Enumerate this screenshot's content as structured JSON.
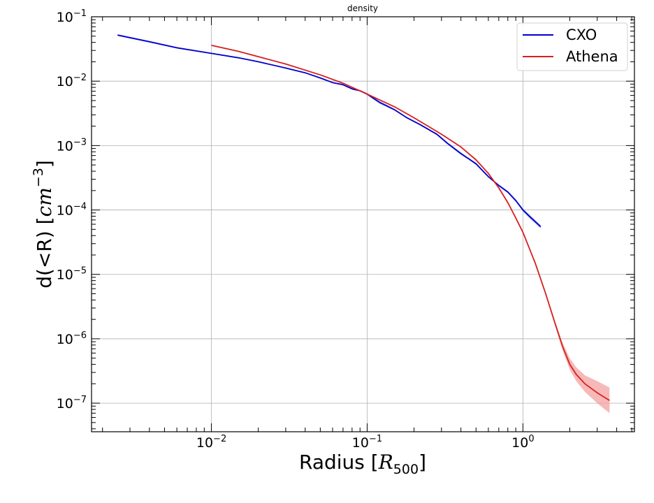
{
  "chart_data": {
    "type": "line",
    "title": "density",
    "xlabel": {
      "main": "Radius [",
      "italic": "R",
      "sub": "500",
      "close": "]"
    },
    "ylabel": {
      "main": "d(<R) [",
      "italic": "cm",
      "sup": "−3",
      "close": "]"
    },
    "x_scale": "log",
    "y_scale": "log",
    "xlim": [
      0.0017,
      5.2
    ],
    "ylim": [
      3.6e-08,
      0.1
    ],
    "grid": true,
    "legend_position": "top-right",
    "x_ticks": [
      {
        "value": 0.01,
        "base": "10",
        "exp": "−2"
      },
      {
        "value": 0.1,
        "base": "10",
        "exp": "−1"
      },
      {
        "value": 1,
        "base": "10",
        "exp": "0"
      }
    ],
    "y_ticks": [
      {
        "value": 1e-07,
        "base": "10",
        "exp": "−7"
      },
      {
        "value": 1e-06,
        "base": "10",
        "exp": "−6"
      },
      {
        "value": 1e-05,
        "base": "10",
        "exp": "−5"
      },
      {
        "value": 0.0001,
        "base": "10",
        "exp": "−4"
      },
      {
        "value": 0.001,
        "base": "10",
        "exp": "−3"
      },
      {
        "value": 0.01,
        "base": "10",
        "exp": "−2"
      },
      {
        "value": 0.1,
        "base": "10",
        "exp": "−1"
      }
    ],
    "series": [
      {
        "name": "CXO",
        "color": "#0000cc",
        "band_color": "#8888ee",
        "x": [
          0.0025,
          0.004,
          0.006,
          0.01,
          0.015,
          0.02,
          0.03,
          0.04,
          0.05,
          0.06,
          0.07,
          0.08,
          0.09,
          0.1,
          0.12,
          0.15,
          0.18,
          0.22,
          0.28,
          0.33,
          0.4,
          0.45,
          0.5,
          0.6,
          0.7,
          0.8,
          0.9,
          1.0,
          1.1,
          1.3
        ],
        "y": [
          0.052,
          0.041,
          0.033,
          0.027,
          0.023,
          0.02,
          0.016,
          0.0135,
          0.0112,
          0.0095,
          0.0088,
          0.0076,
          0.0071,
          0.0063,
          0.0047,
          0.0036,
          0.0027,
          0.0021,
          0.0015,
          0.00107,
          0.00075,
          0.00062,
          0.00052,
          0.00033,
          0.00024,
          0.00019,
          0.00014,
          0.0001,
          8e-05,
          5.5e-05
        ],
        "y_lower": [
          0.0505,
          0.0398,
          0.0322,
          0.0265,
          0.0226,
          0.0197,
          0.0158,
          0.0133,
          0.011,
          0.0093,
          0.0086,
          0.0074,
          0.0069,
          0.0061,
          0.0045,
          0.0035,
          0.00265,
          0.00205,
          0.00145,
          0.00103,
          0.00072,
          0.0006,
          0.0005,
          0.00032,
          0.000232,
          0.000183,
          0.000134,
          9.5e-05,
          7.5e-05,
          5.2e-05
        ],
        "y_upper": [
          0.0535,
          0.0422,
          0.0338,
          0.0275,
          0.0234,
          0.0203,
          0.0162,
          0.0137,
          0.0114,
          0.0097,
          0.009,
          0.0078,
          0.0073,
          0.0065,
          0.0049,
          0.0037,
          0.00275,
          0.00215,
          0.00155,
          0.00111,
          0.00078,
          0.00064,
          0.00054,
          0.00034,
          0.000248,
          0.000197,
          0.000146,
          0.000105,
          8.5e-05,
          5.8e-05
        ]
      },
      {
        "name": "Athena",
        "color": "#d62020",
        "band_color": "#f4a0a0",
        "x": [
          0.01,
          0.015,
          0.02,
          0.03,
          0.05,
          0.07,
          0.1,
          0.15,
          0.2,
          0.3,
          0.4,
          0.5,
          0.6,
          0.7,
          0.8,
          0.9,
          1.0,
          1.2,
          1.4,
          1.6,
          1.8,
          2.0,
          2.2,
          2.5,
          3.0,
          3.6
        ],
        "y": [
          0.036,
          0.029,
          0.024,
          0.0185,
          0.0125,
          0.0093,
          0.0063,
          0.004,
          0.0027,
          0.0015,
          0.00095,
          0.0006,
          0.00037,
          0.00022,
          0.00013,
          7.5e-05,
          4.5e-05,
          1.5e-05,
          5e-06,
          1.8e-06,
          7.5e-07,
          4e-07,
          2.8e-07,
          2e-07,
          1.45e-07,
          1.1e-07
        ],
        "y_lower": [
          0.0352,
          0.0284,
          0.0235,
          0.0182,
          0.0123,
          0.0091,
          0.0062,
          0.00393,
          0.00265,
          0.00147,
          0.00093,
          0.00058,
          0.00036,
          0.000213,
          0.000125,
          7.2e-05,
          4.3e-05,
          1.42e-05,
          4.7e-06,
          1.65e-06,
          6.6e-07,
          3.3e-07,
          2.2e-07,
          1.5e-07,
          1e-07,
          7e-08
        ],
        "y_upper": [
          0.0368,
          0.0296,
          0.0245,
          0.0188,
          0.0127,
          0.0095,
          0.0064,
          0.00407,
          0.00275,
          0.00153,
          0.00097,
          0.00062,
          0.00038,
          0.000227,
          0.000135,
          7.8e-05,
          4.7e-05,
          1.58e-05,
          5.3e-06,
          1.95e-06,
          8.6e-07,
          5e-07,
          3.6e-07,
          2.7e-07,
          2.2e-07,
          1.75e-07
        ]
      }
    ]
  }
}
